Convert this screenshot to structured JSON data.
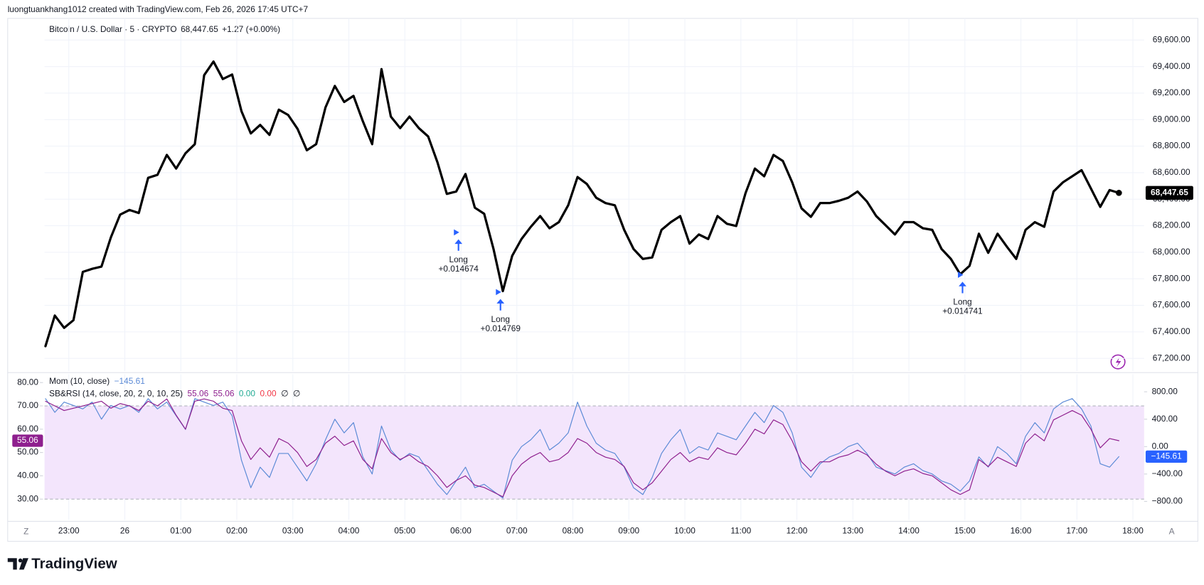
{
  "header": {
    "attribution": "luongtuankhang1012 created with TradingView.com, Feb 26, 2026 17:45 UTC+7",
    "symbol": "Bitcoin / U.S. Dollar · 5 · CRYPTO",
    "price": "68,447.65",
    "change": "+1.27 (+0.00%)"
  },
  "corner_labels": [
    "Z",
    "A"
  ],
  "logo": "TradingView",
  "chart_data": [
    {
      "type": "line",
      "x": [
        1355,
        1365,
        1375,
        1385,
        1395,
        1405,
        1415,
        1425,
        1435,
        1445,
        1455,
        1465,
        1475,
        1485,
        1495,
        1505,
        1515,
        1525,
        1535,
        1545,
        1555,
        1565,
        1575,
        1585,
        1595,
        1605,
        1615,
        1625,
        1635,
        1645,
        1655,
        1665,
        1675,
        1685,
        1695,
        1705,
        1715,
        1725,
        1735,
        1745,
        1755,
        1765,
        1775,
        1785,
        1795,
        1805,
        1815,
        1825,
        1835,
        1845,
        1855,
        1865,
        1875,
        1885,
        1895,
        1905,
        1915,
        1925,
        1935,
        1945,
        1955,
        1965,
        1975,
        1985,
        1995,
        2005,
        2015,
        2025,
        2035,
        2045,
        2055,
        2065,
        2075,
        2085,
        2095,
        2105,
        2115,
        2125,
        2135,
        2145,
        2155,
        2165,
        2175,
        2185,
        2195,
        2205,
        2215,
        2225,
        2235,
        2245,
        2255,
        2265,
        2275,
        2285,
        2295,
        2305,
        2315,
        2325,
        2335,
        2345,
        2355,
        2365,
        2375,
        2385,
        2395,
        2405,
        2415,
        2425,
        2435,
        2445,
        2455,
        2465,
        2475,
        2485,
        2495,
        2505
      ],
      "series": [
        {
          "color": "#000000",
          "values": [
            67292,
            67523,
            67430,
            67488,
            67852,
            67875,
            67892,
            68111,
            68284,
            68319,
            68296,
            68561,
            68584,
            68734,
            68631,
            68746,
            68815,
            69335,
            69438,
            69306,
            69340,
            69063,
            68896,
            68960,
            68885,
            69075,
            69035,
            68931,
            68769,
            68815,
            69092,
            69254,
            69133,
            69179,
            68988,
            68815,
            69381,
            69023,
            68936,
            69023,
            68936,
            68873,
            68677,
            68440,
            68458,
            68590,
            68336,
            68290,
            68025,
            67707,
            67973,
            68100,
            68192,
            68273,
            68181,
            68227,
            68354,
            68567,
            68515,
            68411,
            68371,
            68354,
            68169,
            68025,
            67950,
            67961,
            68169,
            68227,
            68273,
            68065,
            68134,
            68100,
            68273,
            68215,
            68198,
            68446,
            68631,
            68573,
            68734,
            68688,
            68527,
            68331,
            68267,
            68371,
            68371,
            68388,
            68411,
            68458,
            68383,
            68273,
            68204,
            68134,
            68227,
            68227,
            68181,
            68169,
            68025,
            67950,
            67834,
            67898,
            68140,
            67996,
            68140,
            68042,
            67950,
            68169,
            68227,
            68192,
            68458,
            68527,
            68573,
            68619,
            68481,
            68342,
            68469,
            68447.65
          ],
          "last_label": "68,447.65"
        }
      ],
      "xlim": [
        1354,
        2532
      ],
      "xticks": [
        {
          "value": 1380,
          "label": "23:00"
        },
        {
          "value": 1440,
          "label": "26"
        },
        {
          "value": 1500,
          "label": "01:00"
        },
        {
          "value": 1560,
          "label": "02:00"
        },
        {
          "value": 1620,
          "label": "03:00"
        },
        {
          "value": 1680,
          "label": "04:00"
        },
        {
          "value": 1740,
          "label": "05:00"
        },
        {
          "value": 1800,
          "label": "06:00"
        },
        {
          "value": 1860,
          "label": "07:00"
        },
        {
          "value": 1920,
          "label": "08:00"
        },
        {
          "value": 1980,
          "label": "09:00"
        },
        {
          "value": 2040,
          "label": "10:00"
        },
        {
          "value": 2100,
          "label": "11:00"
        },
        {
          "value": 2160,
          "label": "12:00"
        },
        {
          "value": 2220,
          "label": "13:00"
        },
        {
          "value": 2280,
          "label": "14:00"
        },
        {
          "value": 2340,
          "label": "15:00"
        },
        {
          "value": 2400,
          "label": "16:00"
        },
        {
          "value": 2460,
          "label": "17:00"
        },
        {
          "value": 2520,
          "label": "18:00"
        }
      ],
      "ylim": [
        67110,
        69740
      ],
      "yticks": [
        {
          "value": 67200,
          "label": "67,200.00"
        },
        {
          "value": 67400,
          "label": "67,400.00"
        },
        {
          "value": 67600,
          "label": "67,600.00"
        },
        {
          "value": 67800,
          "label": "67,800.00"
        },
        {
          "value": 68000,
          "label": "68,000.00"
        },
        {
          "value": 68200,
          "label": "68,200.00"
        },
        {
          "value": 68400,
          "label": "68,400.00"
        },
        {
          "value": 68600,
          "label": "68,600.00"
        },
        {
          "value": 68800,
          "label": "68,800.00"
        },
        {
          "value": 69000,
          "label": "69,000.00"
        },
        {
          "value": 69200,
          "label": "69,200.00"
        },
        {
          "value": 69400,
          "label": "69,400.00"
        },
        {
          "value": 69600,
          "label": "69,600.00"
        }
      ],
      "grid": true,
      "annotations": [
        {
          "x": 1795,
          "y": 68150,
          "label": "Long",
          "text": "+0.014674"
        },
        {
          "x": 1840,
          "y": 67700,
          "label": "Long",
          "text": "+0.014769"
        },
        {
          "x": 2335,
          "y": 67830,
          "label": "Long",
          "text": "+0.014741"
        }
      ],
      "annotation_color": "#2962ff"
    },
    {
      "type": "line",
      "x": [
        1355,
        1365,
        1375,
        1385,
        1395,
        1405,
        1415,
        1425,
        1435,
        1445,
        1455,
        1465,
        1475,
        1485,
        1495,
        1505,
        1515,
        1525,
        1535,
        1545,
        1555,
        1565,
        1575,
        1585,
        1595,
        1605,
        1615,
        1625,
        1635,
        1645,
        1655,
        1665,
        1675,
        1685,
        1695,
        1705,
        1715,
        1725,
        1735,
        1745,
        1755,
        1765,
        1775,
        1785,
        1795,
        1805,
        1815,
        1825,
        1835,
        1845,
        1855,
        1865,
        1875,
        1885,
        1895,
        1905,
        1915,
        1925,
        1935,
        1945,
        1955,
        1965,
        1975,
        1985,
        1995,
        2005,
        2015,
        2025,
        2035,
        2045,
        2055,
        2065,
        2075,
        2085,
        2095,
        2105,
        2115,
        2125,
        2135,
        2145,
        2155,
        2165,
        2175,
        2185,
        2195,
        2205,
        2215,
        2225,
        2235,
        2245,
        2255,
        2265,
        2275,
        2285,
        2295,
        2305,
        2315,
        2325,
        2335,
        2345,
        2355,
        2365,
        2375,
        2385,
        2395,
        2405,
        2415,
        2425,
        2435,
        2445,
        2455,
        2465,
        2475,
        2485,
        2495,
        2505
      ],
      "xlim": [
        1354,
        2532
      ],
      "series": [
        {
          "name": "Mom (10, close)",
          "color": "#5b8ad6",
          "axis": "y2",
          "last_label": "−145.61",
          "values": [
            700,
            500,
            650,
            600,
            550,
            650,
            400,
            600,
            550,
            600,
            500,
            700,
            550,
            650,
            450,
            250,
            700,
            650,
            600,
            650,
            450,
            -200,
            -600,
            -300,
            -450,
            -100,
            -100,
            -300,
            -500,
            -250,
            100,
            400,
            200,
            350,
            -150,
            -400,
            300,
            -50,
            -200,
            -100,
            -150,
            -350,
            -550,
            -700,
            -500,
            -300,
            -600,
            -550,
            -650,
            -750,
            -200,
            0,
            100,
            250,
            -50,
            50,
            200,
            650,
            300,
            50,
            -50,
            -100,
            -300,
            -600,
            -700,
            -450,
            -100,
            100,
            250,
            -100,
            0,
            -50,
            200,
            150,
            100,
            300,
            500,
            350,
            600,
            500,
            200,
            -300,
            -450,
            -250,
            -150,
            -100,
            0,
            50,
            -100,
            -300,
            -350,
            -400,
            -300,
            -250,
            -350,
            -400,
            -500,
            -550,
            -650,
            -500,
            -150,
            -300,
            0,
            -100,
            -250,
            150,
            350,
            200,
            550,
            650,
            700,
            550,
            300,
            -250,
            -300,
            -145.61
          ]
        },
        {
          "name": "SB&RSI (14, close, 20, 2, 0, 10, 25)",
          "color": "#8e1f8e",
          "last_label": "55.06",
          "legend_values": [
            "55.06",
            "55.06",
            "0.00",
            "0.00",
            "∅",
            "∅"
          ],
          "legend_colors": [
            "#8e1f8e",
            "#8e1f8e",
            "#22ab94",
            "#f23645",
            "#131722",
            "#131722"
          ],
          "values": [
            72,
            70,
            68,
            69,
            70,
            71,
            72,
            69,
            71,
            70,
            68,
            72,
            70,
            73,
            66,
            60,
            72,
            73,
            72,
            69,
            68,
            55,
            47,
            52,
            48,
            56,
            54,
            50,
            44,
            47,
            54,
            57,
            53,
            55,
            47,
            43,
            56,
            50,
            47,
            49,
            46,
            44,
            40,
            35,
            38,
            40,
            36,
            35,
            33,
            31,
            40,
            45,
            48,
            50,
            46,
            47,
            50,
            56,
            54,
            50,
            48,
            47,
            44,
            37,
            34,
            37,
            42,
            47,
            50,
            46,
            48,
            47,
            52,
            50,
            49,
            54,
            60,
            58,
            64,
            62,
            55,
            46,
            42,
            46,
            46,
            48,
            49,
            51,
            49,
            45,
            42,
            40,
            42,
            43,
            41,
            40,
            37,
            34,
            32,
            34,
            47,
            44,
            48,
            46,
            44,
            54,
            58,
            55,
            64,
            66,
            68,
            66,
            60,
            52,
            56,
            55.06
          ]
        }
      ],
      "ylim": [
        22.1,
        82.96
      ],
      "yticks": [
        {
          "value": 30,
          "label": "30.00"
        },
        {
          "value": 40,
          "label": "40.00"
        },
        {
          "value": 50,
          "label": "50.00"
        },
        {
          "value": 60,
          "label": "60.00"
        },
        {
          "value": 70,
          "label": "70.00"
        },
        {
          "value": 80,
          "label": "80.00"
        }
      ],
      "y2lim": [
        -1035,
        1035
      ],
      "y2ticks": [
        {
          "value": -800,
          "label": "−800.00"
        },
        {
          "value": -400,
          "label": "−400.00"
        },
        {
          "value": 0,
          "label": "0.00"
        },
        {
          "value": 400,
          "label": "400.00"
        },
        {
          "value": 800,
          "label": "800.00"
        }
      ],
      "band": [
        30,
        70
      ],
      "band_color": "#f3e5fc"
    }
  ]
}
